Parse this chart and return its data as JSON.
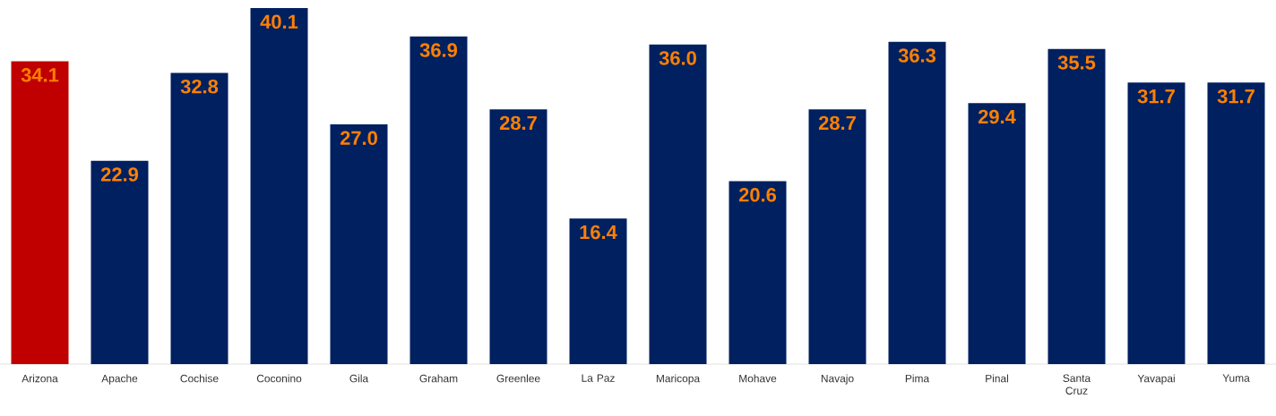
{
  "chart_data": {
    "type": "bar",
    "categories": [
      "Arizona",
      "Apache",
      "Cochise",
      "Coconino",
      "Gila",
      "Graham",
      "Greenlee",
      "La Paz",
      "Maricopa",
      "Mohave",
      "Navajo",
      "Pima",
      "Pinal",
      "Santa Cruz",
      "Yavapai",
      "Yuma"
    ],
    "values": [
      34.1,
      22.9,
      32.8,
      40.1,
      27.0,
      36.9,
      28.7,
      16.4,
      36.0,
      20.6,
      28.7,
      36.3,
      29.4,
      35.5,
      31.7,
      31.7
    ],
    "value_labels": [
      "34.1",
      "22.9",
      "32.8",
      "40.1",
      "27.0",
      "36.9",
      "28.7",
      "16.4",
      "36.0",
      "20.6",
      "28.7",
      "36.3",
      "29.4",
      "35.5",
      "31.7",
      "31.7"
    ],
    "colors": [
      "#c00000",
      "#002060",
      "#002060",
      "#002060",
      "#002060",
      "#002060",
      "#002060",
      "#002060",
      "#002060",
      "#002060",
      "#002060",
      "#002060",
      "#002060",
      "#002060",
      "#002060",
      "#002060"
    ],
    "ylim": [
      0,
      40.1
    ]
  }
}
